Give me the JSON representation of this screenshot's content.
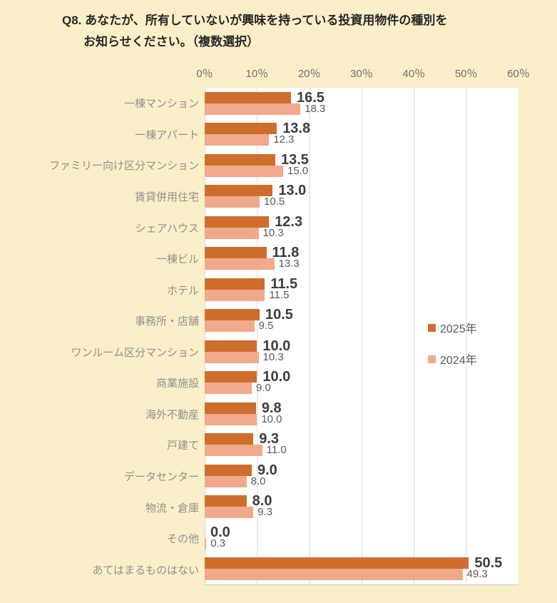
{
  "title": {
    "line1": "Q8. あなたが、所有していないが興味を持っている投資用物件の種別を",
    "line2": "お知らせください。（複数選択）"
  },
  "axis": {
    "ticks": [
      "0％",
      "10％",
      "20％",
      "30％",
      "40％",
      "50％",
      "60％"
    ]
  },
  "legend": [
    {
      "label": "2025年",
      "color": "#CE6E2C"
    },
    {
      "label": "2024年",
      "color": "#F0A98A"
    }
  ],
  "chart_data": {
    "type": "bar",
    "orientation": "horizontal",
    "title": "Q8. あなたが、所有していないが興味を持っている投資用物件の種別をお知らせください。（複数選択）",
    "categories": [
      "一棟マンション",
      "一棟アパート",
      "ファミリー向け区分マンション",
      "賃貸併用住宅",
      "シェアハウス",
      "一棟ビル",
      "ホテル",
      "事務所・店舗",
      "ワンルーム区分マンション",
      "商業施設",
      "海外不動産",
      "戸建て",
      "データセンター",
      "物流・倉庫",
      "その他",
      "あてはまるものはない"
    ],
    "series": [
      {
        "name": "2025年",
        "color": "#CE6E2C",
        "values": [
          16.5,
          13.8,
          13.5,
          13.0,
          12.3,
          11.8,
          11.5,
          10.5,
          10.0,
          10.0,
          9.8,
          9.3,
          9.0,
          8.0,
          0.0,
          50.5
        ]
      },
      {
        "name": "2024年",
        "color": "#F0A98A",
        "values": [
          18.3,
          12.3,
          15.0,
          10.5,
          10.3,
          13.3,
          11.5,
          9.5,
          10.3,
          9.0,
          10.0,
          11.0,
          8.0,
          9.3,
          0.3,
          49.3
        ]
      }
    ],
    "xlim": [
      0,
      60
    ],
    "xticks_percent": [
      0,
      10,
      20,
      30,
      40,
      50,
      60
    ],
    "xlabel": "",
    "ylabel": "",
    "grid": "vertical",
    "legend_position": "middle-right",
    "value_labels": true
  },
  "colors": {
    "page_bg": "#FBEFC9",
    "plot_bg": "#FFFFFF",
    "gridline": "#D9D9D9",
    "series_2025": "#CE6E2C",
    "series_2024": "#F0A98A",
    "category_label": "#8F8F8F",
    "axis_label": "#6E6E6E",
    "value_2025": "#3D3D3D",
    "value_2024": "#595959",
    "title": "#262626"
  }
}
